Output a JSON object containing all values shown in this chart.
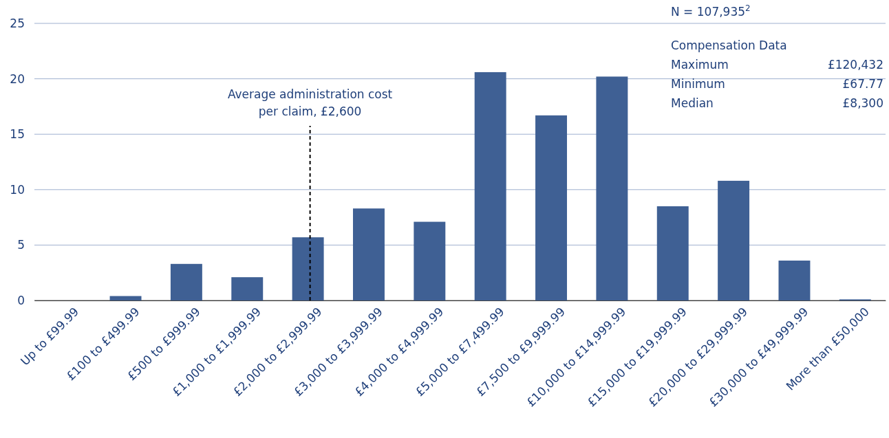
{
  "chart_data": {
    "type": "bar",
    "categories": [
      "Up to £99.99",
      "£100 to £499.99",
      "£500 to £999.99",
      "£1,000 to £1,999.99",
      "£2,000 to £2,999.99",
      "£3,000 to £3,999.99",
      "£4,000 to £4,999.99",
      "£5,000 to £7,499.99",
      "£7,500 to £9,999.99",
      "£10,000 to £14,999.99",
      "£15,000 to £19,999.99",
      "£20,000 to £29,999.99",
      "£30,000 to £49,999.99",
      "More than £50,000"
    ],
    "values": [
      0,
      0.4,
      3.3,
      2.1,
      5.7,
      8.3,
      7.1,
      20.6,
      16.7,
      20.2,
      8.5,
      10.8,
      3.6,
      0.1
    ],
    "color": "#3f6094",
    "ylim": [
      0,
      25
    ],
    "yticks": [
      0,
      5,
      10,
      15,
      20,
      25
    ],
    "grid": "y",
    "ref_lines": [
      {
        "axis": "x",
        "value": "£2,000 to £2,999.99",
        "label": "Average administration cost per claim, £2,600",
        "line_style": "dashed",
        "color": "#000000"
      }
    ],
    "annotations": [
      "N = 107,935$^{2}$",
      "Compensation Data",
      "Maximum",
      "£120,432",
      "Minimum",
      "£67.77",
      "Median",
      "£8,300"
    ]
  }
}
